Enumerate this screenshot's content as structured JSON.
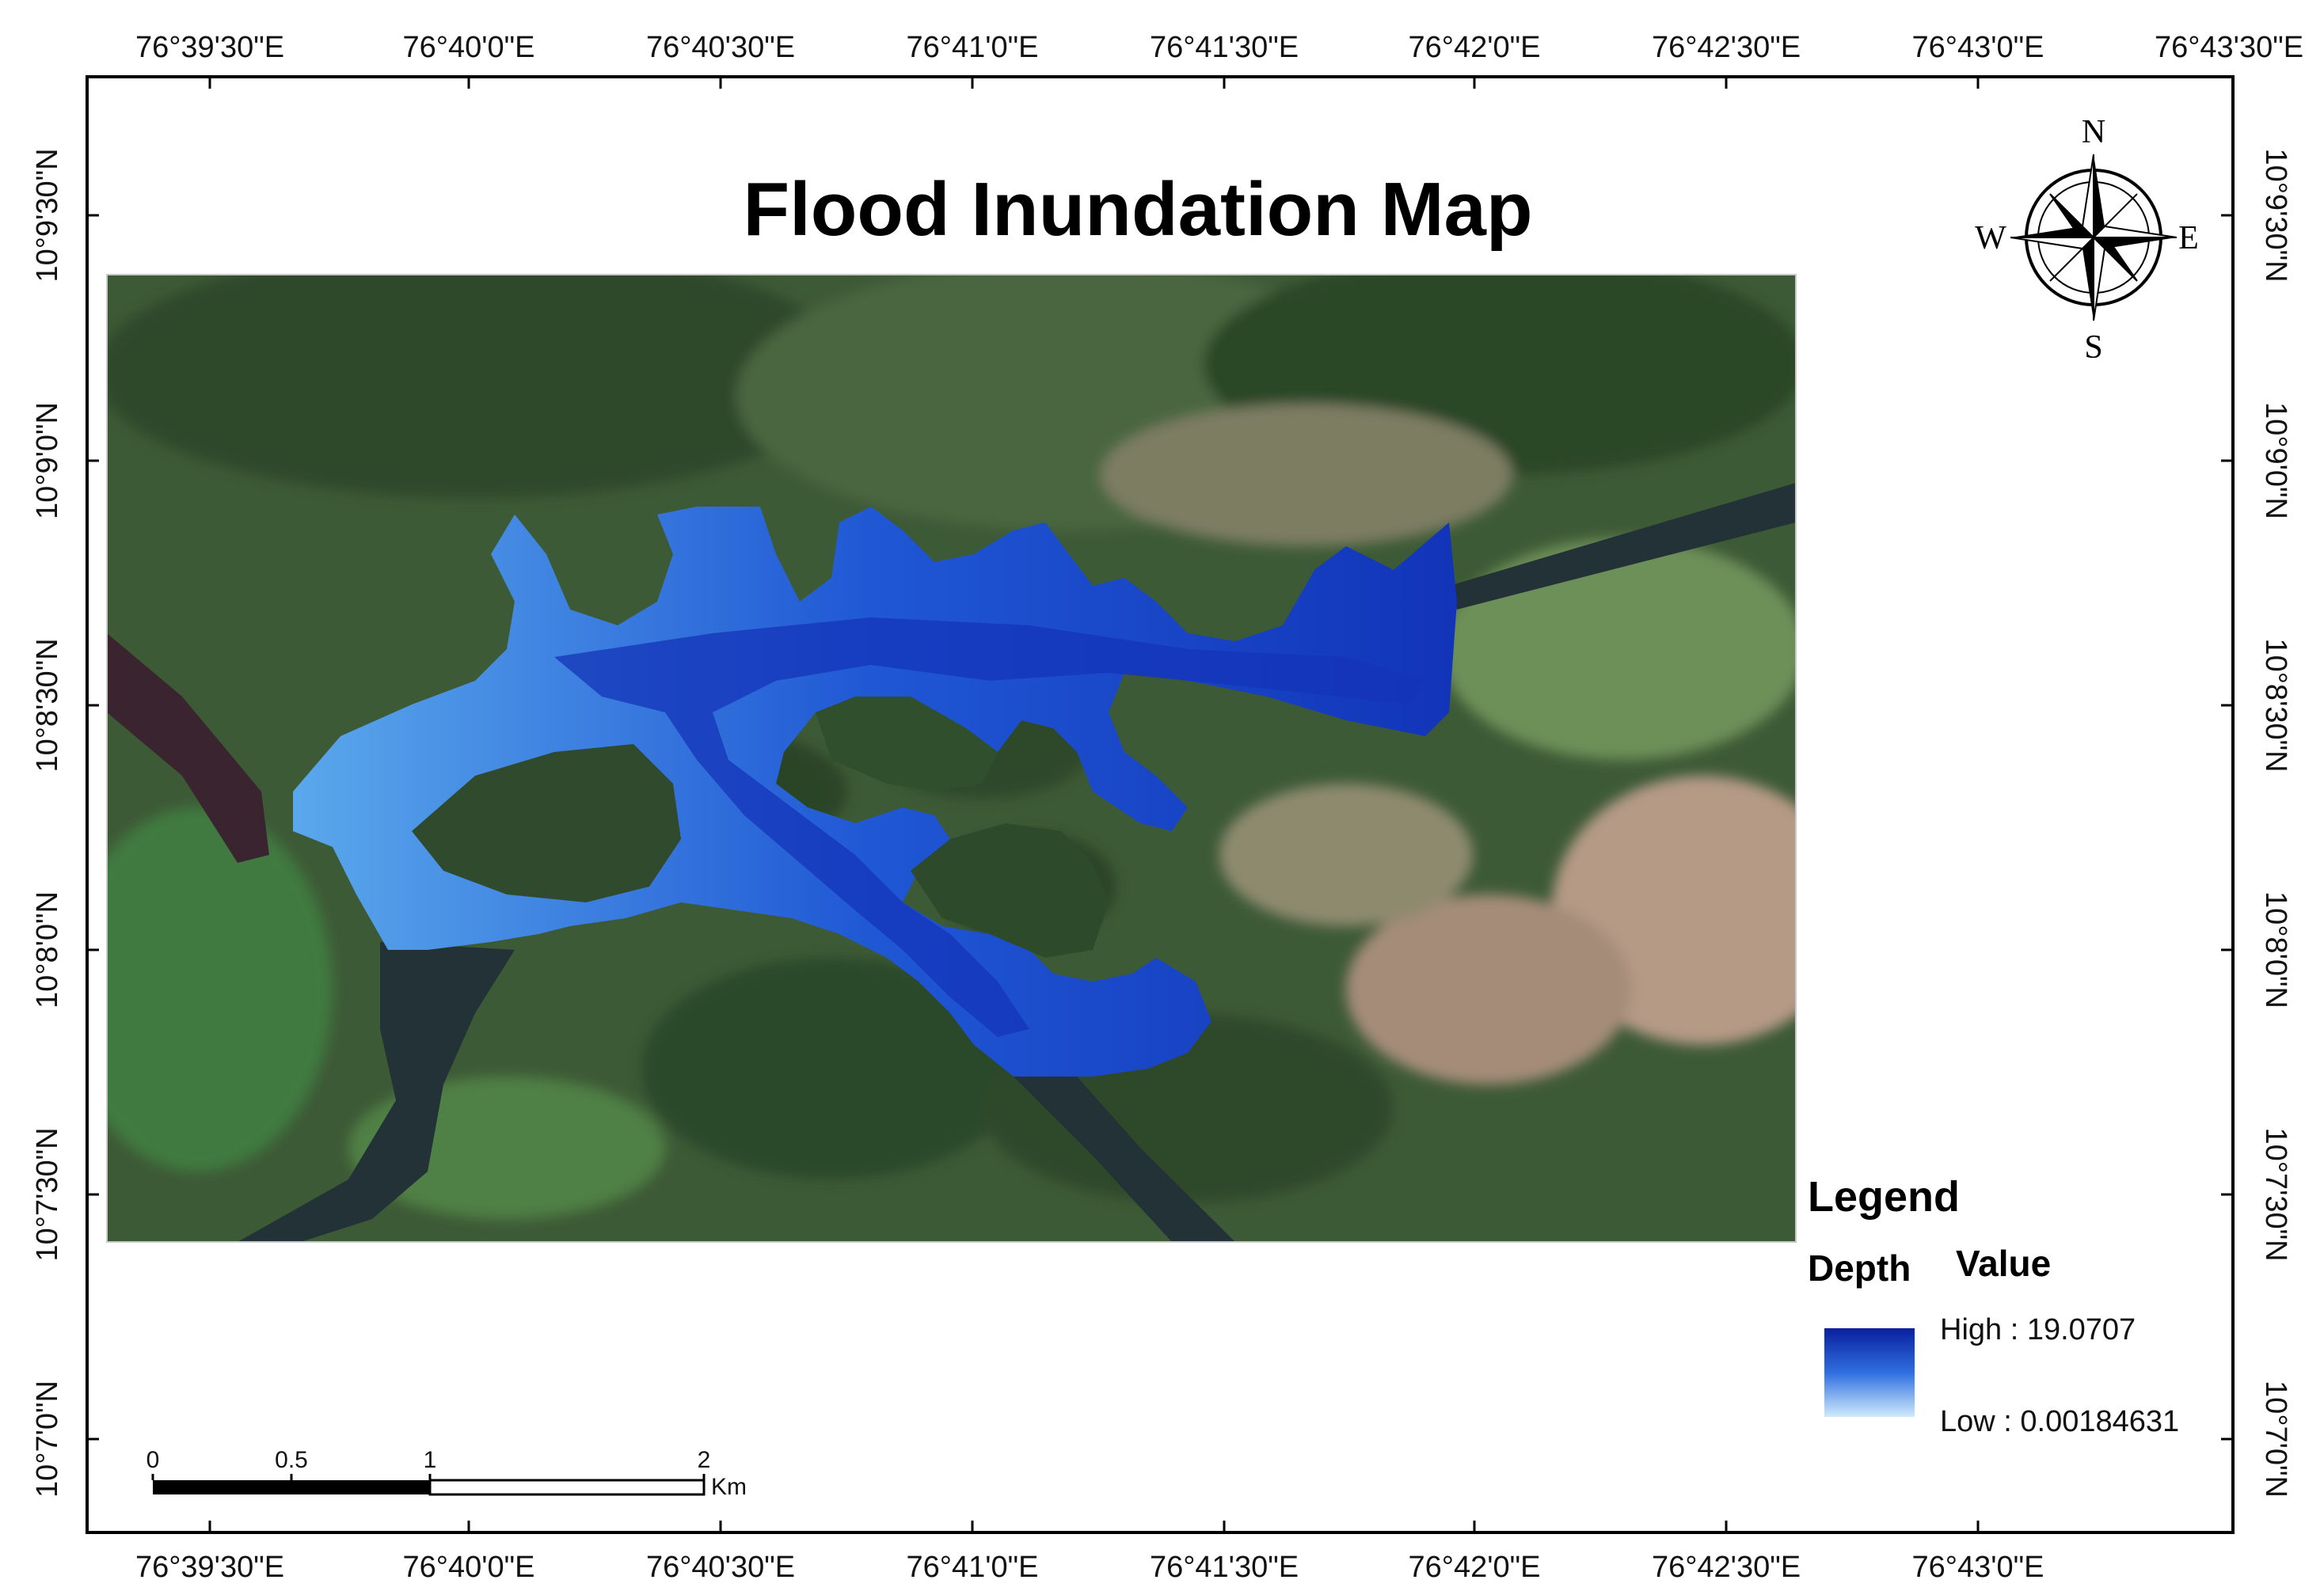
{
  "map": {
    "title": "Flood Inundation Map",
    "top_ticks": [
      "76°39'30\"E",
      "76°40'0\"E",
      "76°40'30\"E",
      "76°41'0\"E",
      "76°41'30\"E",
      "76°42'0\"E",
      "76°42'30\"E",
      "76°43'0\"E",
      "76°43'30\"E"
    ],
    "bottom_ticks": [
      "76°39'30\"E",
      "76°40'0\"E",
      "76°40'30\"E",
      "76°41'0\"E",
      "76°41'30\"E",
      "76°42'0\"E",
      "76°42'30\"E",
      "76°43'0\"E"
    ],
    "left_ticks": [
      "10°9'30\"N",
      "10°9'0\"N",
      "10°8'30\"N",
      "10°8'0\"N",
      "10°7'30\"N",
      "10°7'0\"N"
    ],
    "right_ticks": [
      "10°9'30\"N",
      "10°9'0\"N",
      "10°8'30\"N",
      "10°8'0\"N",
      "10°7'30\"N",
      "10°7'0\"N"
    ]
  },
  "compass": {
    "n": "N",
    "s": "S",
    "e": "E",
    "w": "W"
  },
  "legend": {
    "heading": "Legend",
    "depth_label": "Depth",
    "value_label": "Value",
    "high": "High : 19.0707",
    "low": "Low : 0.00184631",
    "colors": {
      "high": "#0a1f9e",
      "mid": "#2f6fe0",
      "low": "#cfeafc"
    }
  },
  "scale_bar": {
    "labels": [
      "0",
      "0.5",
      "1",
      "2"
    ],
    "unit": "Km"
  },
  "colors": {
    "forest": "#3d5a36",
    "forest_dark": "#243a22",
    "farmland": "#5a8a4a",
    "bare": "#b59a86",
    "river": "#233236"
  }
}
